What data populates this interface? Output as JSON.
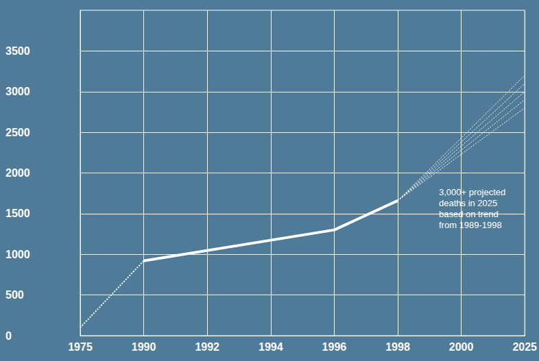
{
  "chart_data": {
    "type": "line",
    "categories": [
      "1975",
      "1990",
      "1992",
      "1994",
      "1996",
      "1998",
      "2000",
      "2025"
    ],
    "series": [
      {
        "color": "#ffffff",
        "line_style": "dotted",
        "values": [
          100,
          920,
          null,
          null,
          null,
          null,
          null,
          null
        ]
      },
      {
        "color": "#ffffff",
        "line_style": "solid",
        "values": [
          null,
          920,
          null,
          null,
          1300,
          1660,
          null,
          null
        ]
      },
      {
        "color": "#ffffff",
        "line_style": "dotted",
        "values": [
          null,
          null,
          null,
          null,
          null,
          1660,
          null,
          2800
        ]
      },
      {
        "color": "#ffffff",
        "line_style": "dotted",
        "values": [
          null,
          null,
          null,
          null,
          null,
          1660,
          null,
          2900
        ]
      },
      {
        "color": "#ffffff",
        "line_style": "dotted",
        "values": [
          null,
          null,
          null,
          null,
          null,
          1660,
          null,
          3000
        ]
      },
      {
        "color": "#ffffff",
        "line_style": "dotted",
        "values": [
          null,
          null,
          null,
          null,
          null,
          1660,
          null,
          3100
        ]
      },
      {
        "color": "#ffffff",
        "line_style": "dotted",
        "values": [
          null,
          null,
          null,
          null,
          null,
          1660,
          null,
          3200
        ]
      }
    ],
    "ylim": [
      0,
      4000
    ],
    "yticks": [
      0,
      500,
      1000,
      1500,
      2000,
      2500,
      3000,
      3500
    ],
    "grid": true,
    "annotation": [
      "3,000+ projected",
      "deaths in 2025",
      "based on trend",
      "from 1989-1998"
    ]
  }
}
